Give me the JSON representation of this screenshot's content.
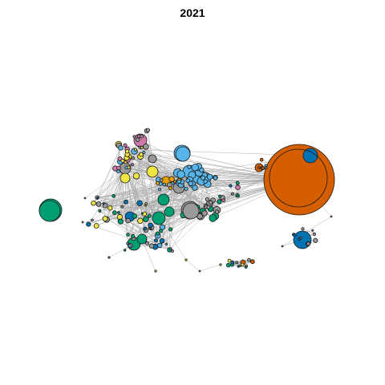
{
  "title": "2021",
  "palette": {
    "orange": "#D55E00",
    "blue": "#0072B2",
    "lightblue": "#56B4E9",
    "green": "#009E73",
    "gray": "#999999",
    "yellow": "#F0E442",
    "pink": "#CC79A7",
    "amber": "#E69F00"
  },
  "edge_color": "#a8a8a8",
  "background": "#ffffff"
}
